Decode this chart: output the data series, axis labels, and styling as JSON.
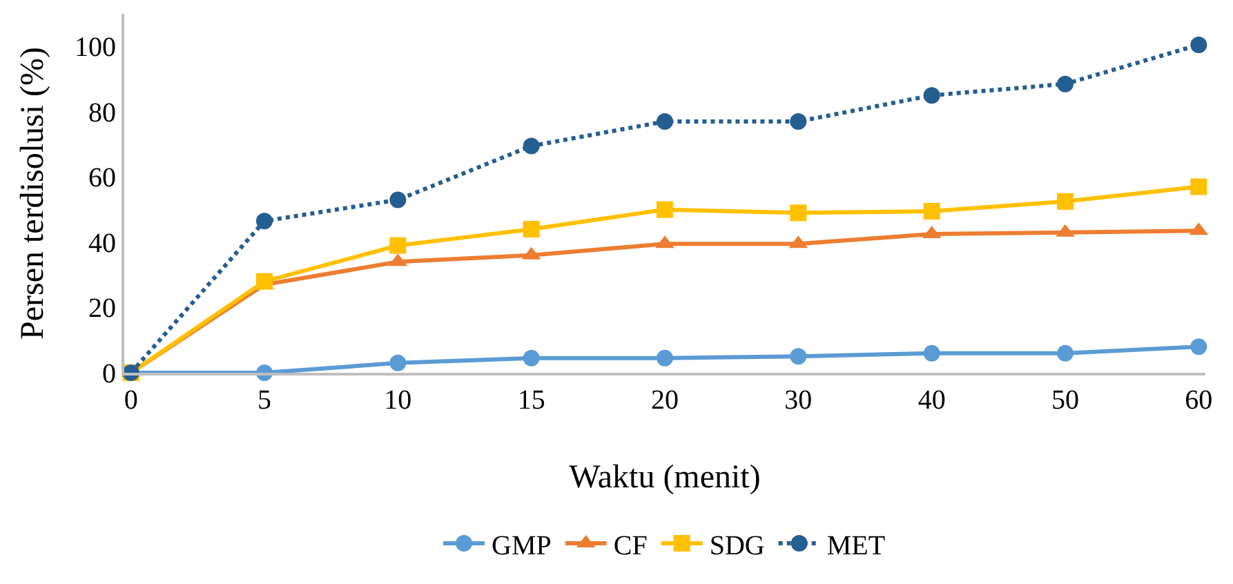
{
  "chart_data": {
    "type": "line",
    "xlabel": "Waktu (menit)",
    "ylabel": "Persen terdisolusi (%)",
    "categories": [
      "0",
      "5",
      "10",
      "15",
      "20",
      "30",
      "40",
      "50",
      "60"
    ],
    "ylim": [
      0,
      110
    ],
    "yticks": [
      0,
      20,
      40,
      60,
      80,
      100
    ],
    "grid": false,
    "legend": "bottom",
    "series": [
      {
        "name": "GMP",
        "color": "#5b9bd5",
        "marker": "circle",
        "line_style": "solid",
        "values": [
          0,
          0,
          3,
          4.5,
          4.5,
          5,
          6,
          6,
          8
        ]
      },
      {
        "name": "CF",
        "color": "#ed7d31",
        "marker": "triangle",
        "line_style": "solid",
        "values": [
          0,
          27,
          34,
          36,
          39.5,
          39.5,
          42.5,
          43,
          43.5
        ]
      },
      {
        "name": "SDG",
        "color": "#ffc000",
        "marker": "square",
        "line_style": "solid",
        "values": [
          0,
          28,
          39,
          44,
          50,
          49,
          49.5,
          52.5,
          57
        ]
      },
      {
        "name": "MET",
        "color": "#255e91",
        "marker": "circle",
        "line_style": "dotted",
        "values": [
          0,
          46.5,
          53,
          69.5,
          77,
          77,
          85,
          88.5,
          100.5
        ]
      }
    ]
  }
}
